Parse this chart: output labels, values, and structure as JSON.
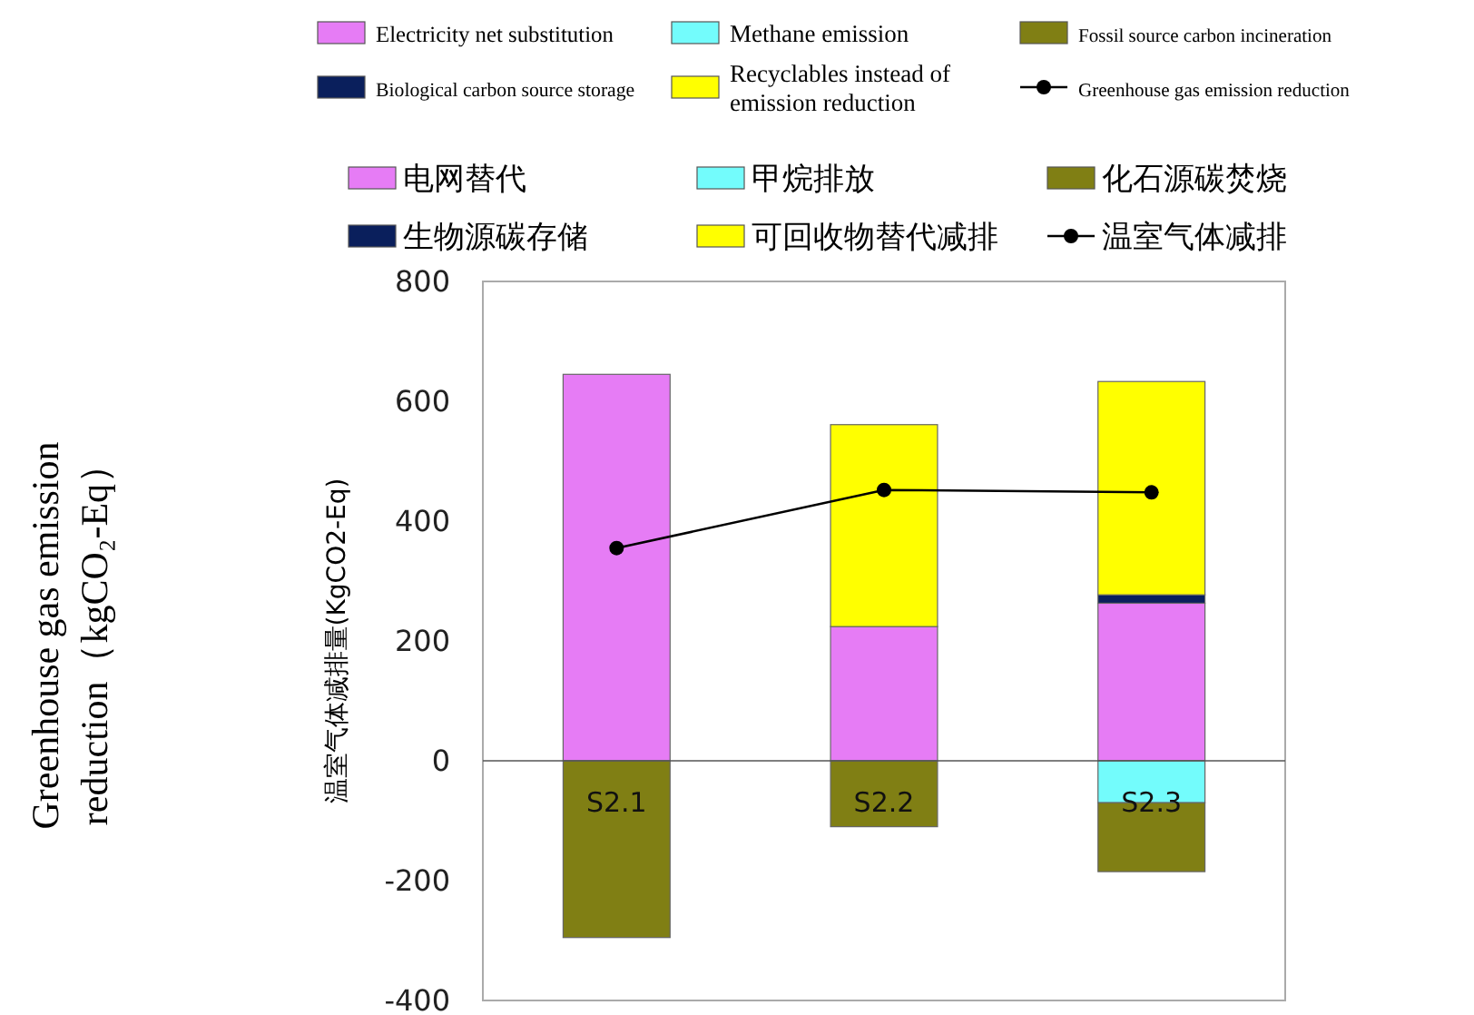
{
  "chart_data": {
    "type": "bar",
    "stacked": true,
    "ylabel": "温室气体减排量(KgCO2-Eq)",
    "categories": [
      "S2.1",
      "S2.2",
      "S2.3"
    ],
    "series": [
      {
        "name": "电网替代",
        "color": "#e67cf5",
        "values": [
          645,
          224,
          263
        ]
      },
      {
        "name": "甲烷排放",
        "color": "#73fcfc",
        "values": [
          0,
          0,
          -70
        ]
      },
      {
        "name": "化石源碳焚烧",
        "color": "#807f14",
        "values": [
          -295,
          -110,
          -115
        ]
      },
      {
        "name": "生物源碳存储",
        "color": "#0a1f5c",
        "values": [
          0,
          0,
          14
        ]
      },
      {
        "name": "可回收物替代减排",
        "color": "#ffff00",
        "values": [
          0,
          337,
          356
        ]
      },
      {
        "name": "温室气体减排",
        "type": "line",
        "color": "#000000",
        "values": [
          355,
          452,
          448
        ]
      }
    ],
    "ylim": [
      -400,
      800
    ],
    "yticks": [
      -400,
      -200,
      0,
      200,
      400,
      600,
      800
    ],
    "legend": "top",
    "marker": "circle",
    "grid": false,
    "annotations": [
      "Electricity net substitution",
      "Methane emission",
      "Fossil source carbon incineration",
      "Biological carbon source storage",
      "Recyclables instead of emission reduction",
      "Greenhouse gas emission reduction",
      "Greenhouse gas emission reduction（kgCO₂-Eq）"
    ]
  }
}
